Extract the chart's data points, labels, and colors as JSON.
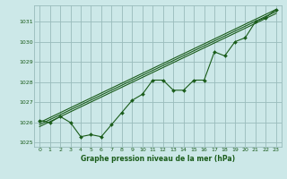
{
  "bg_color": "#cce8e8",
  "grid_color": "#99bbbb",
  "line_color": "#1a5c1a",
  "xlabel": "Graphe pression niveau de la mer (hPa)",
  "xlim": [
    -0.5,
    23.5
  ],
  "ylim": [
    1024.8,
    1031.8
  ],
  "yticks": [
    1025,
    1026,
    1027,
    1028,
    1029,
    1030,
    1031
  ],
  "xticks": [
    0,
    1,
    2,
    3,
    4,
    5,
    6,
    7,
    8,
    9,
    10,
    11,
    12,
    13,
    14,
    15,
    16,
    17,
    18,
    19,
    20,
    21,
    22,
    23
  ],
  "series": [
    {
      "x": [
        0,
        1,
        2,
        3,
        4,
        5,
        6,
        7,
        8,
        9,
        10,
        11,
        12,
        13,
        14,
        15,
        16,
        17,
        18,
        19,
        20,
        21,
        22,
        23
      ],
      "y": [
        1026.1,
        1026.0,
        1026.3,
        1026.0,
        1025.3,
        1025.4,
        1025.3,
        1025.9,
        1026.5,
        1027.1,
        1027.4,
        1028.1,
        1028.1,
        1027.6,
        1027.6,
        1028.1,
        1028.1,
        1029.5,
        1029.3,
        1030.0,
        1030.2,
        1031.0,
        1031.2,
        1031.6
      ],
      "marker": "D",
      "markersize": 2.0,
      "linewidth": 0.8,
      "linestyle": "-"
    },
    {
      "x": [
        0,
        23
      ],
      "y": [
        1026.0,
        1031.6
      ],
      "marker": null,
      "markersize": 0,
      "linewidth": 0.8,
      "linestyle": "-"
    },
    {
      "x": [
        0,
        23
      ],
      "y": [
        1025.9,
        1031.5
      ],
      "marker": null,
      "markersize": 0,
      "linewidth": 0.8,
      "linestyle": "-"
    },
    {
      "x": [
        0,
        23
      ],
      "y": [
        1025.8,
        1031.4
      ],
      "marker": null,
      "markersize": 0,
      "linewidth": 0.8,
      "linestyle": "-"
    }
  ]
}
